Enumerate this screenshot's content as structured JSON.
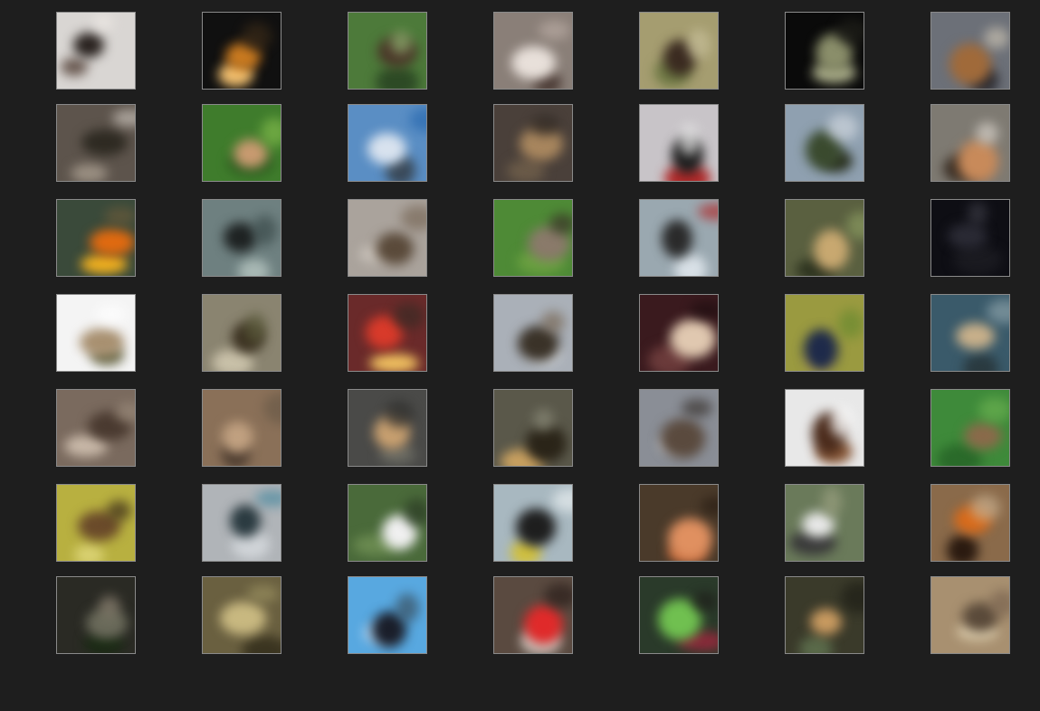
{
  "grid": {
    "rows": 7,
    "cols": 7,
    "samples": [
      {
        "bg": "#d9d6d3",
        "c1": "#2a2320",
        "c2": "#6a5a52",
        "c3": "#efeae6"
      },
      {
        "bg": "#101010",
        "c1": "#c97a20",
        "c2": "#f2c070",
        "c3": "#3a2a18"
      },
      {
        "bg": "#4d7a3a",
        "c1": "#4a3528",
        "c2": "#2d4a25",
        "c3": "#8fb070"
      },
      {
        "bg": "#8a7f78",
        "c1": "#e8e0da",
        "c2": "#4a3a34",
        "c3": "#b8aaa2"
      },
      {
        "bg": "#a59d70",
        "c1": "#3a2a20",
        "c2": "#6f7a45",
        "c3": "#c8c09a"
      },
      {
        "bg": "#0a0a0a",
        "c1": "#8a8e6a",
        "c2": "#a8ab88",
        "c3": "#20201a"
      },
      {
        "bg": "#6c7078",
        "c1": "#a06a3a",
        "c2": "#2a2a30",
        "c3": "#c8c0b0"
      },
      {
        "bg": "#5d544c",
        "c1": "#2e2a22",
        "c2": "#9a8f82",
        "c3": "#c9c2ba"
      },
      {
        "bg": "#3f7c2c",
        "c1": "#c89a70",
        "c2": "#2a5a1e",
        "c3": "#7fb84a"
      },
      {
        "bg": "#5a8ec4",
        "c1": "#d8e2ee",
        "c2": "#3a4a5a",
        "c3": "#2a6ab0"
      },
      {
        "bg": "#4a403a",
        "c1": "#a8865e",
        "c2": "#6a5a48",
        "c3": "#2a2420"
      },
      {
        "bg": "#c8c4c8",
        "c1": "#1a1a1a",
        "c2": "#b02a2a",
        "c3": "#eaeaea"
      },
      {
        "bg": "#8fa0b0",
        "c1": "#3a4a2e",
        "c2": "#2a3020",
        "c3": "#cfd6de"
      },
      {
        "bg": "#7e7a72",
        "c1": "#c88a5a",
        "c2": "#3a2e24",
        "c3": "#d8d2ca"
      },
      {
        "bg": "#3a4a3a",
        "c1": "#e06a10",
        "c2": "#f0b020",
        "c3": "#6a5a3a"
      },
      {
        "bg": "#6e8080",
        "c1": "#1e2222",
        "c2": "#a8b8b4",
        "c3": "#3a4a4a"
      },
      {
        "bg": "#aaa39c",
        "c1": "#5a4a3a",
        "c2": "#c9c2ba",
        "c3": "#7a6a5a"
      },
      {
        "bg": "#4e8a36",
        "c1": "#8a7a6a",
        "c2": "#6aa040",
        "c3": "#3a3028"
      },
      {
        "bg": "#9aa8b0",
        "c1": "#2a2a2a",
        "c2": "#d8e0e6",
        "c3": "#b02a2a"
      },
      {
        "bg": "#5a6040",
        "c1": "#c8a870",
        "c2": "#2e3420",
        "c3": "#8a9a60"
      },
      {
        "bg": "#0e0e14",
        "c1": "#2a2a34",
        "c2": "#1a1a20",
        "c3": "#3a3a44"
      },
      {
        "bg": "#f4f4f4",
        "c1": "#a89070",
        "c2": "#6a6a4a",
        "c3": "#ffffff"
      },
      {
        "bg": "#8a8470",
        "c1": "#3a3020",
        "c2": "#c8c0a8",
        "c3": "#5a5a3a"
      },
      {
        "bg": "#6a2a2a",
        "c1": "#d83a2a",
        "c2": "#f0c060",
        "c3": "#3a2a24"
      },
      {
        "bg": "#aab0b8",
        "c1": "#3a3228",
        "c2": "#d8dce0",
        "c3": "#7a6a58"
      },
      {
        "bg": "#3a1a1e",
        "c1": "#e0c8b0",
        "c2": "#6a3a3a",
        "c3": "#1e0e10"
      },
      {
        "bg": "#9a9a40",
        "c1": "#1e2a4a",
        "c2": "#c8b050",
        "c3": "#6a8a30"
      },
      {
        "bg": "#3a5a6a",
        "c1": "#c8b08a",
        "c2": "#2a3a40",
        "c3": "#8aa0a8"
      },
      {
        "bg": "#7a6a5e",
        "c1": "#4a3a30",
        "c2": "#c8b8a8",
        "c3": "#9a8a7a"
      },
      {
        "bg": "#8a7058",
        "c1": "#c0a080",
        "c2": "#4a3a2e",
        "c3": "#6a5a48"
      },
      {
        "bg": "#4a4a48",
        "c1": "#c8a070",
        "c2": "#6a6a62",
        "c3": "#2e2e2c"
      },
      {
        "bg": "#5a584a",
        "c1": "#2a2418",
        "c2": "#c8a060",
        "c3": "#8a8a78"
      },
      {
        "bg": "#8a8e96",
        "c1": "#5a4a3e",
        "c2": "#c8ccd2",
        "c3": "#3a3430"
      },
      {
        "bg": "#e8e8e8",
        "c1": "#4a2a1a",
        "c2": "#8a5a3a",
        "c3": "#ffffff"
      },
      {
        "bg": "#3e8a3a",
        "c1": "#8a6a4a",
        "c2": "#2a6a2a",
        "c3": "#6ab050"
      },
      {
        "bg": "#b8b040",
        "c1": "#6a4a2a",
        "c2": "#d8d070",
        "c3": "#3a2a1a"
      },
      {
        "bg": "#b0b4b8",
        "c1": "#2a3a40",
        "c2": "#d0d4d8",
        "c3": "#4a8aa0"
      },
      {
        "bg": "#4a6a3a",
        "c1": "#f0f0f0",
        "c2": "#6a8a50",
        "c3": "#2a3a24"
      },
      {
        "bg": "#a8b8c0",
        "c1": "#1e1e1e",
        "c2": "#d0c040",
        "c3": "#e8eef0"
      },
      {
        "bg": "#4a3a2a",
        "c1": "#e09060",
        "c2": "#c86a3a",
        "c3": "#2a1e14"
      },
      {
        "bg": "#6a7a5a",
        "c1": "#e8e8e8",
        "c2": "#3a3a3a",
        "c3": "#9aa080"
      },
      {
        "bg": "#8a6a4a",
        "c1": "#d86a1a",
        "c2": "#2a1a10",
        "c3": "#c8b090"
      },
      {
        "bg": "#2a2a24",
        "c1": "#6a6a5a",
        "c2": "#1a2a14",
        "c3": "#8a8070"
      },
      {
        "bg": "#6a6040",
        "c1": "#c8b880",
        "c2": "#3a3420",
        "c3": "#9a9060"
      },
      {
        "bg": "#58a8e0",
        "c1": "#1a1e2a",
        "c2": "#a8d0f0",
        "c3": "#3a5060"
      },
      {
        "bg": "#5a4a40",
        "c1": "#e02a2a",
        "c2": "#c8c0b8",
        "c3": "#2a1e1a"
      },
      {
        "bg": "#2a3a2a",
        "c1": "#70c050",
        "c2": "#8a2a3a",
        "c3": "#1e1e1a"
      },
      {
        "bg": "#3a3a2a",
        "c1": "#c89a60",
        "c2": "#5a6a4a",
        "c3": "#1e1e16"
      },
      {
        "bg": "#a89070",
        "c1": "#5a4a3a",
        "c2": "#d8c8a8",
        "c3": "#7a6450"
      }
    ]
  }
}
